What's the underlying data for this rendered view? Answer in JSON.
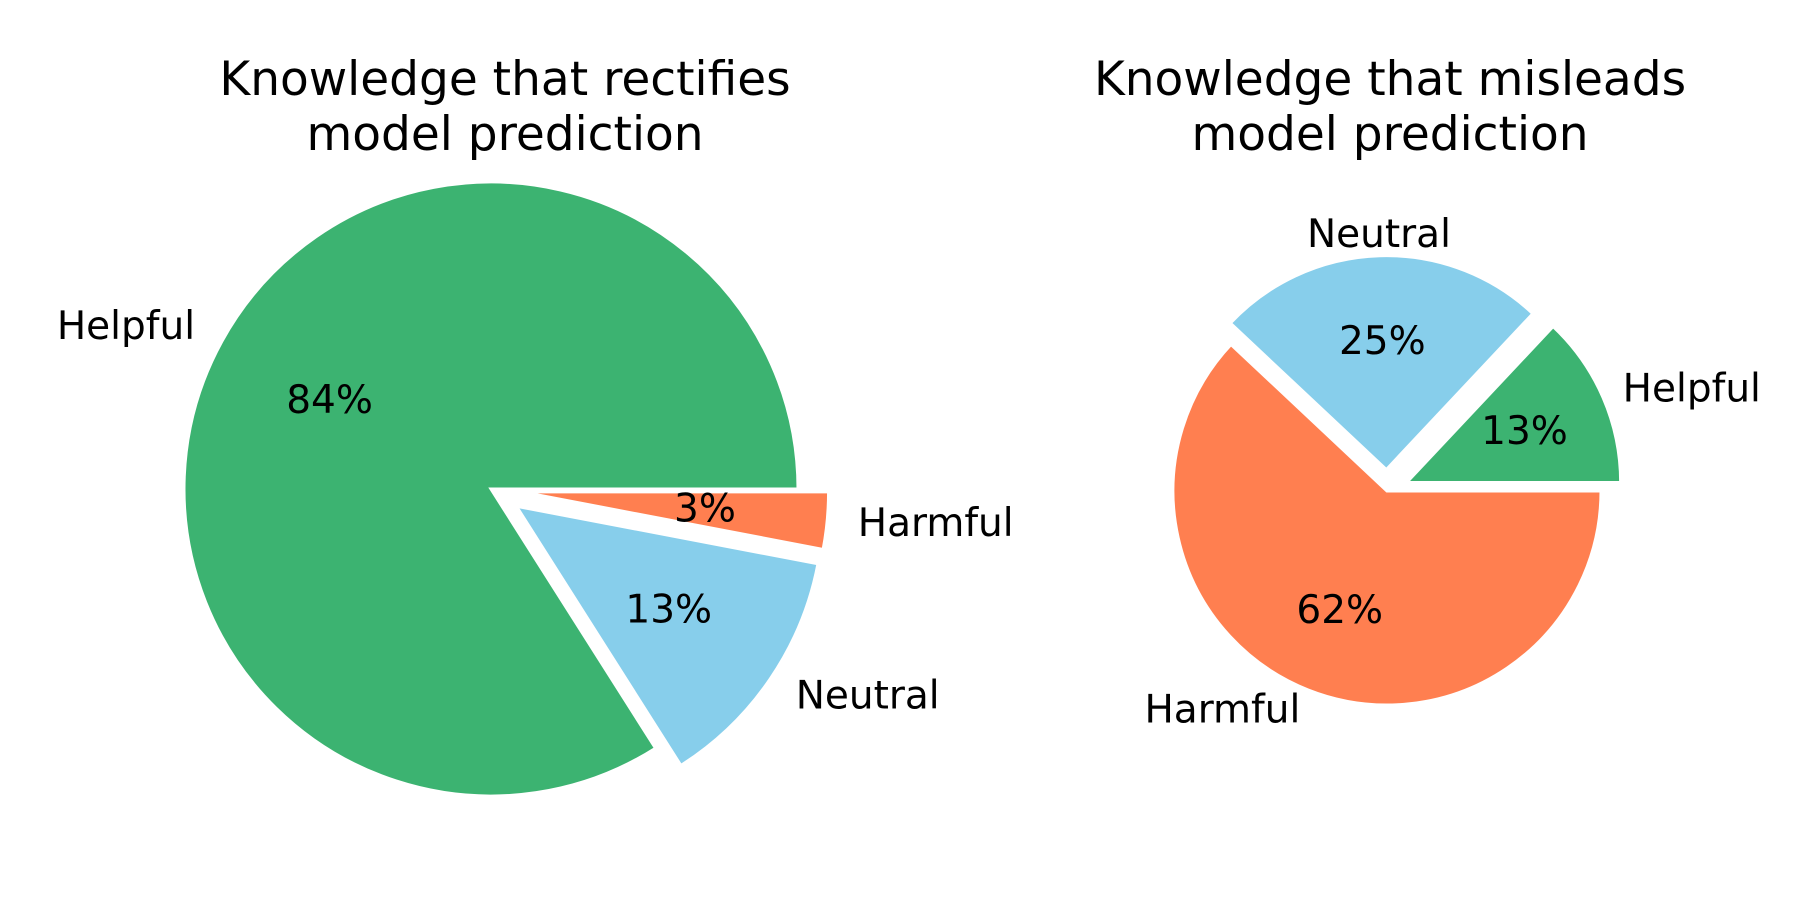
{
  "chart_data": [
    {
      "type": "pie",
      "title": [
        "Knowledge that rectifies",
        "model prediction"
      ],
      "slices": [
        {
          "label": "Helpful",
          "value": 84,
          "pct_label": "84%",
          "color": "#3CB371",
          "exploded": false
        },
        {
          "label": "Neutral",
          "value": 13,
          "pct_label": "13%",
          "color": "#87CEEB",
          "exploded": true
        },
        {
          "label": "Harmful",
          "value": 3,
          "pct_label": "3%",
          "color": "#FF7F50",
          "exploded": true
        }
      ]
    },
    {
      "type": "pie",
      "title": [
        "Knowledge that misleads",
        "model prediction"
      ],
      "slices": [
        {
          "label": "Helpful",
          "value": 13,
          "pct_label": "13%",
          "color": "#3CB371",
          "exploded": true
        },
        {
          "label": "Neutral",
          "value": 25,
          "pct_label": "25%",
          "color": "#87CEEB",
          "exploded": true
        },
        {
          "label": "Harmful",
          "value": 62,
          "pct_label": "62%",
          "color": "#FF7F50",
          "exploded": false
        }
      ]
    }
  ]
}
